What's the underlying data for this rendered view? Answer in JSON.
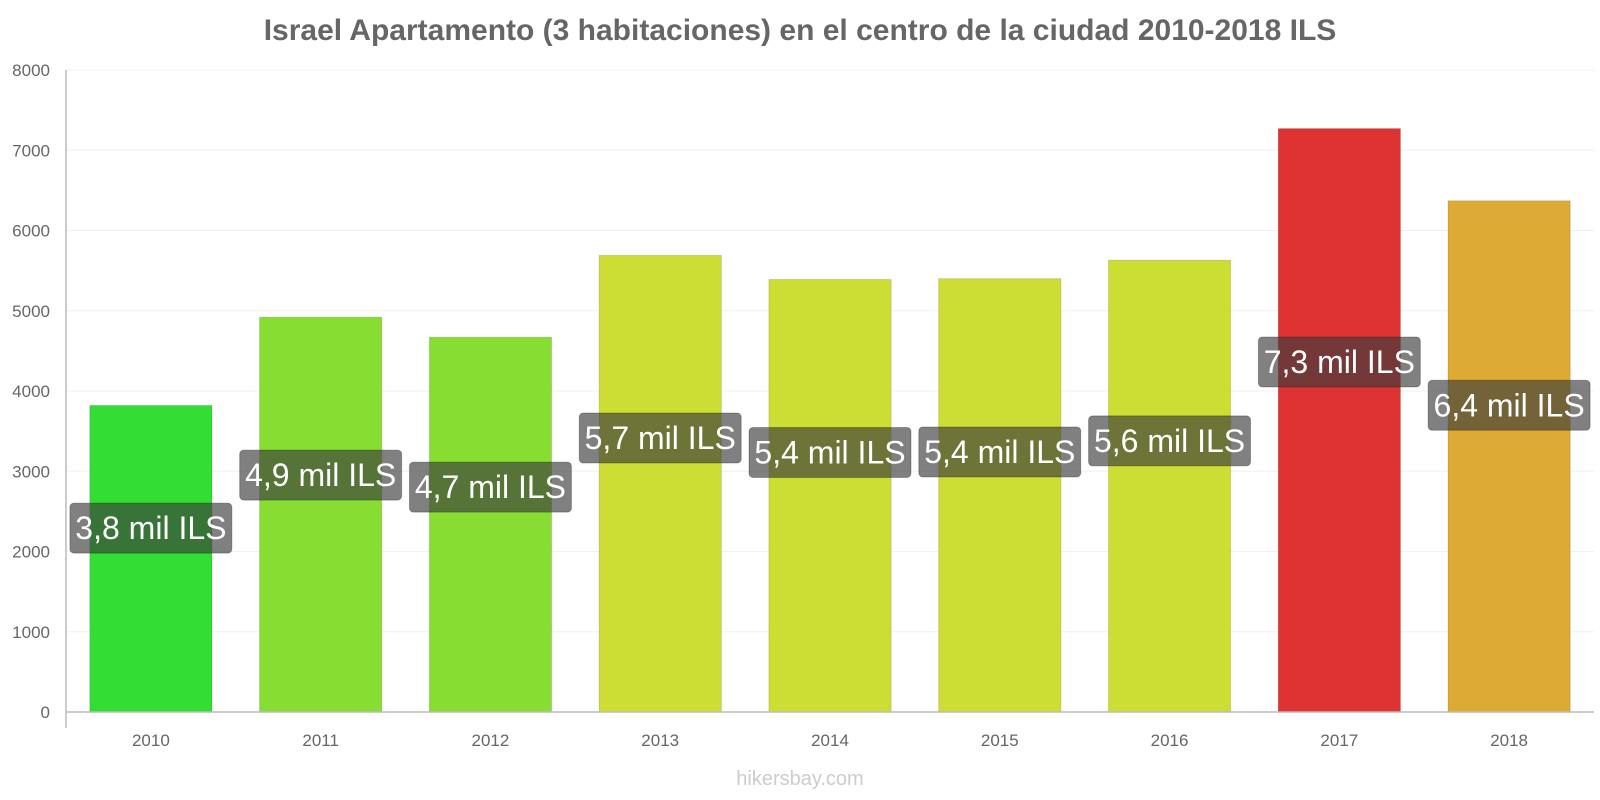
{
  "chart_data": {
    "type": "bar",
    "title": "Israel Apartamento (3 habitaciones) en el centro de la ciudad 2010-2018 ILS",
    "xlabel": "",
    "ylabel": "",
    "categories": [
      "2010",
      "2011",
      "2012",
      "2013",
      "2014",
      "2015",
      "2016",
      "2017",
      "2018"
    ],
    "values": [
      3820,
      4920,
      4670,
      5690,
      5390,
      5400,
      5630,
      7270,
      6370
    ],
    "data_labels": [
      "3,8 mil ILS",
      "4,9 mil ILS",
      "4,7 mil ILS",
      "5,7 mil ILS",
      "5,4 mil ILS",
      "5,4 mil ILS",
      "5,6 mil ILS",
      "7,3 mil ILS",
      "6,4 mil ILS"
    ],
    "bar_colors": [
      "#33dd33",
      "#88dd33",
      "#88dd33",
      "#ccdd33",
      "#ccdd33",
      "#ccdd33",
      "#ccdd33",
      "#dd3333",
      "#ddaa33"
    ],
    "ylim": [
      0,
      8000
    ],
    "yticks": [
      0,
      1000,
      2000,
      3000,
      4000,
      5000,
      6000,
      7000,
      8000
    ],
    "grid": true,
    "legend": "none"
  },
  "watermark": "hikersbay.com"
}
